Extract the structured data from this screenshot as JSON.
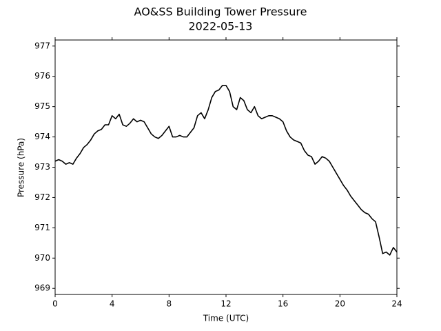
{
  "chart_data": {
    "type": "line",
    "title": "AO&SS Building Tower Pressure",
    "subtitle": "2022-05-13",
    "x_label": "Time (UTC)",
    "y_label": "Pressure (hPa)",
    "x": [
      0,
      0.25,
      0.5,
      0.75,
      1,
      1.25,
      1.5,
      1.75,
      2,
      2.25,
      2.5,
      2.75,
      3,
      3.25,
      3.5,
      3.75,
      4,
      4.25,
      4.5,
      4.75,
      5,
      5.25,
      5.5,
      5.75,
      6,
      6.25,
      6.5,
      6.75,
      7,
      7.25,
      7.5,
      7.75,
      8,
      8.25,
      8.5,
      8.75,
      9,
      9.25,
      9.5,
      9.75,
      10,
      10.25,
      10.5,
      10.75,
      11,
      11.25,
      11.5,
      11.75,
      12,
      12.25,
      12.5,
      12.75,
      13,
      13.25,
      13.5,
      13.75,
      14,
      14.25,
      14.5,
      14.75,
      15,
      15.25,
      15.5,
      15.75,
      16,
      16.25,
      16.5,
      16.75,
      17,
      17.25,
      17.5,
      17.75,
      18,
      18.25,
      18.5,
      18.75,
      19,
      19.25,
      19.5,
      19.75,
      20,
      20.25,
      20.5,
      20.75,
      21,
      21.25,
      21.5,
      21.75,
      22,
      22.25,
      22.5,
      22.75,
      23,
      23.25,
      23.5,
      23.75,
      24
    ],
    "series": [
      {
        "name": "Pressure",
        "color": "#000000",
        "values": [
          973.2,
          973.25,
          973.2,
          973.1,
          973.15,
          973.1,
          973.3,
          973.45,
          973.65,
          973.75,
          973.9,
          974.1,
          974.2,
          974.25,
          974.4,
          974.4,
          974.7,
          974.6,
          974.75,
          974.4,
          974.35,
          974.45,
          974.6,
          974.5,
          974.55,
          974.5,
          974.3,
          974.1,
          974.0,
          973.95,
          974.05,
          974.2,
          974.35,
          974.0,
          974.0,
          974.05,
          974.0,
          974.0,
          974.15,
          974.3,
          974.7,
          974.8,
          974.6,
          974.9,
          975.3,
          975.5,
          975.55,
          975.7,
          975.7,
          975.5,
          975.0,
          974.9,
          975.3,
          975.2,
          974.9,
          974.8,
          975.0,
          974.7,
          974.6,
          974.65,
          974.7,
          974.7,
          974.65,
          974.6,
          974.5,
          974.2,
          974.0,
          973.9,
          973.85,
          973.8,
          973.55,
          973.4,
          973.35,
          973.1,
          973.2,
          973.35,
          973.3,
          973.2,
          973.0,
          972.8,
          972.6,
          972.4,
          972.25,
          972.05,
          971.9,
          971.75,
          971.6,
          971.5,
          971.45,
          971.3,
          971.2,
          970.7,
          970.15,
          970.2,
          970.1,
          970.35,
          970.2
        ]
      }
    ],
    "xlim": [
      0,
      24
    ],
    "xticks": [
      0,
      4,
      8,
      12,
      16,
      20,
      24
    ],
    "ylim": [
      968.8,
      977.2
    ],
    "yticks": [
      969,
      970,
      971,
      972,
      973,
      974,
      975,
      976,
      977
    ],
    "grid": false
  }
}
